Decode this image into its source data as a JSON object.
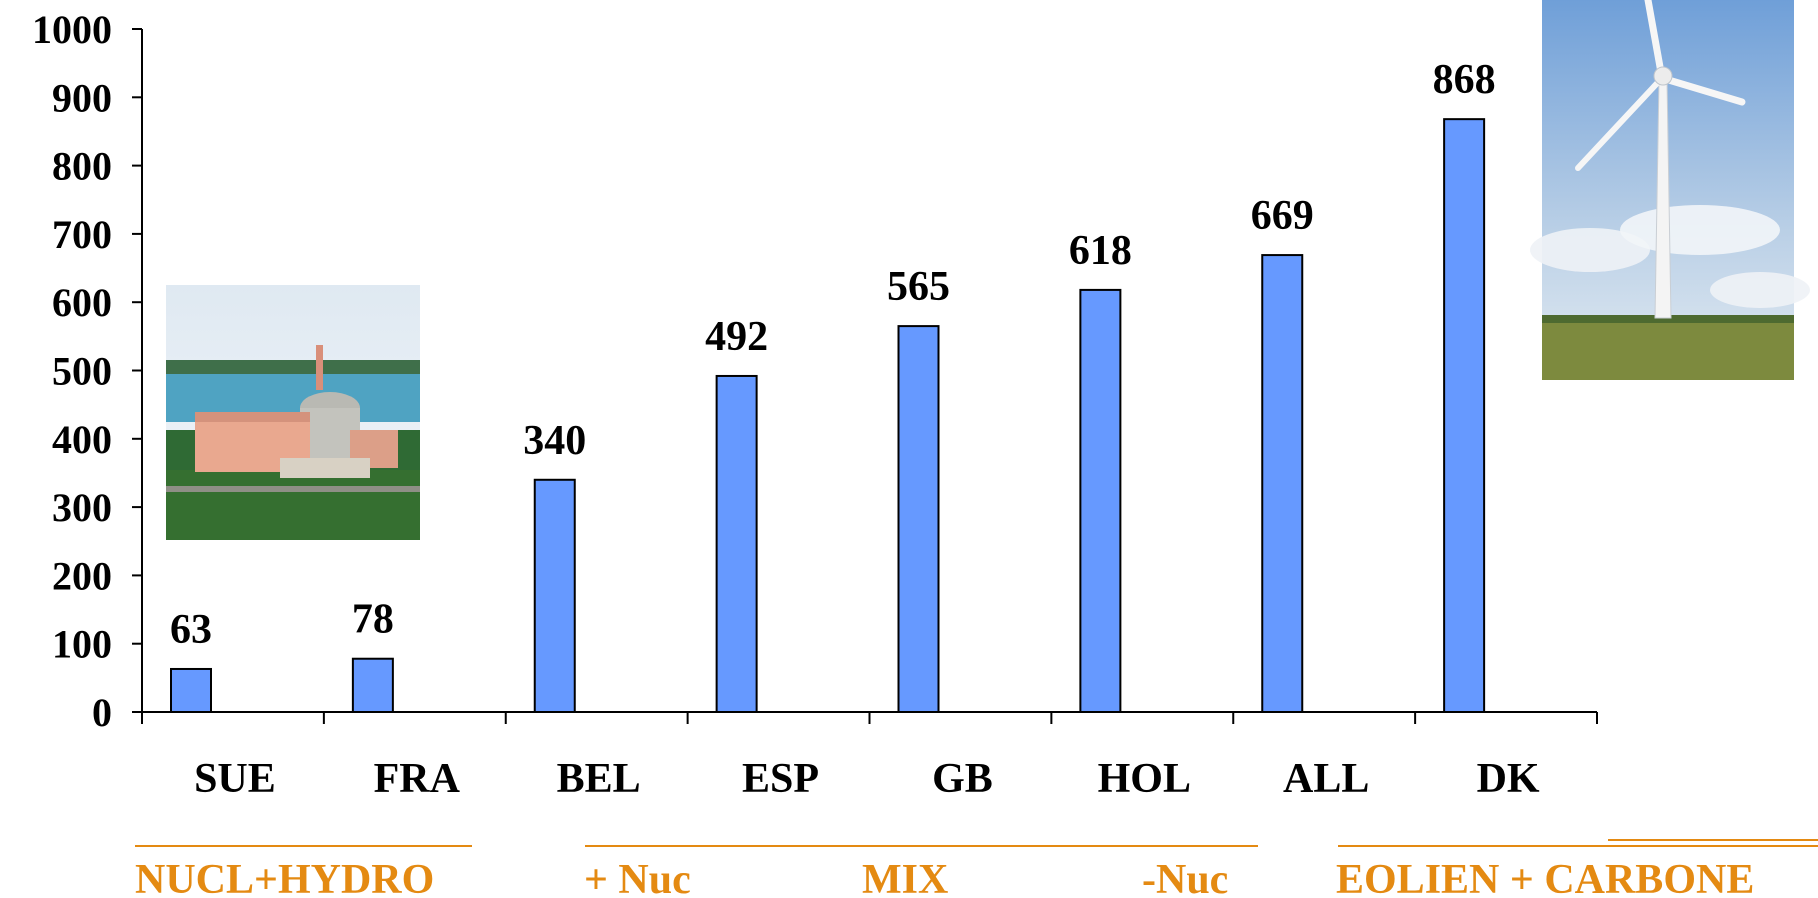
{
  "chart_data": {
    "type": "bar",
    "categories": [
      "SUE",
      "FRA",
      "BEL",
      "ESP",
      "GB",
      "HOL",
      "ALL",
      "DK"
    ],
    "values": [
      63,
      78,
      340,
      492,
      565,
      618,
      669,
      868
    ],
    "data_labels": [
      "63",
      "78",
      "340",
      "492",
      "565",
      "618",
      "669",
      "868"
    ],
    "y_ticks": [
      "0",
      "100",
      "200",
      "300",
      "400",
      "500",
      "600",
      "700",
      "800",
      "900",
      "1000"
    ],
    "ylim": [
      0,
      1000
    ],
    "grid": false,
    "bar_color": "#6699FF",
    "title": "",
    "xlabel": "",
    "ylabel": ""
  },
  "groups": {
    "color": "#E48A12",
    "nucl_hydro": "NUCL+HYDRO",
    "plus_nuc": "+ Nuc",
    "mix": "MIX",
    "minus_nuc": "-Nuc",
    "eolien_carbone": "EOLIEN + CARBONE"
  },
  "images": {
    "left": "nuclear-power-plant-photo",
    "right": "wind-turbine-photo"
  }
}
